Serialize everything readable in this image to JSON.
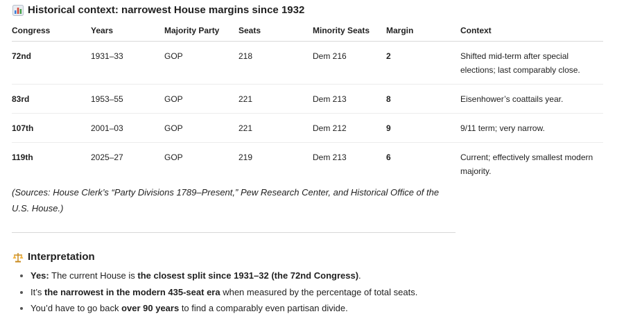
{
  "title": "Historical context: narrowest House margins since 1932",
  "table": {
    "headers": [
      "Congress",
      "Years",
      "Majority Party",
      "Seats",
      "Minority Seats",
      "Margin",
      "Context"
    ],
    "rows": [
      [
        "72nd",
        "1931–33",
        "GOP",
        "218",
        "Dem 216",
        "2",
        "Shifted mid-term after special elections; last comparably close."
      ],
      [
        "83rd",
        "1953–55",
        "GOP",
        "221",
        "Dem 213",
        "8",
        "Eisenhower’s coattails year."
      ],
      [
        "107th",
        "2001–03",
        "GOP",
        "221",
        "Dem 212",
        "9",
        "9/11 term; very narrow."
      ],
      [
        "119th",
        "2025–27",
        "GOP",
        "219",
        "Dem 213",
        "6",
        "Current; effectively smallest modern majority."
      ]
    ]
  },
  "sources": "(Sources: House Clerk’s “Party Divisions 1789–Present,” Pew Research Center, and Historical Office of the U.S. House.)",
  "interpretation": {
    "heading": "Interpretation",
    "bullets": [
      [
        {
          "text": "Yes:",
          "bold": true
        },
        {
          "text": " The current House is ",
          "bold": false
        },
        {
          "text": "the closest split since 1931–32 (the 72nd Congress)",
          "bold": true
        },
        {
          "text": ".",
          "bold": false
        }
      ],
      [
        {
          "text": "It’s ",
          "bold": false
        },
        {
          "text": "the narrowest in the modern 435-seat era",
          "bold": true
        },
        {
          "text": " when measured by the percentage of total seats.",
          "bold": false
        }
      ],
      [
        {
          "text": "You’d have to go back ",
          "bold": false
        },
        {
          "text": "over 90 years",
          "bold": true
        },
        {
          "text": " to find a comparably even partisan divide.",
          "bold": false
        }
      ]
    ]
  }
}
